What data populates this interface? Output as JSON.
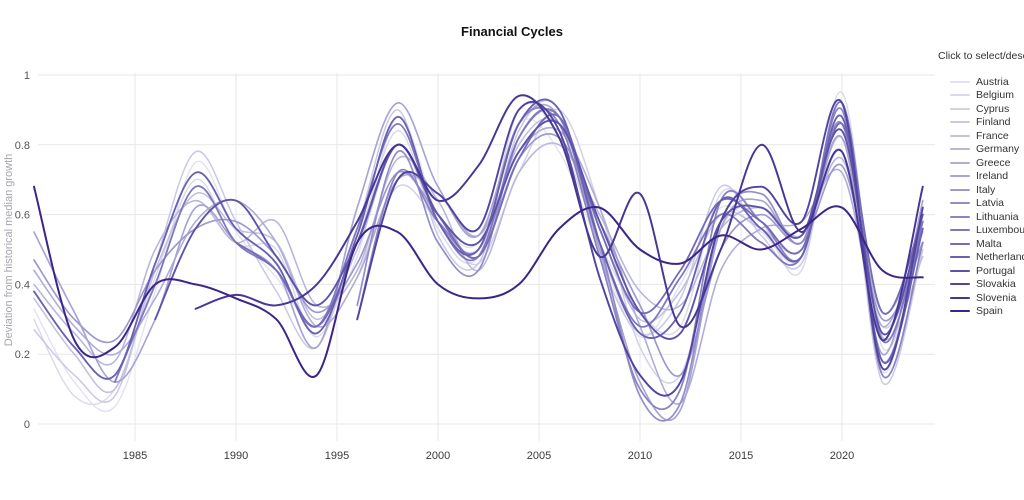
{
  "title": "Financial Cycles",
  "legend": {
    "title": "Click to select/deselect"
  },
  "axes": {
    "grid_color": "#e7e7ea",
    "x_tick_color": "#3a3a3a",
    "y_tick_color": "#555555"
  },
  "chart_data": {
    "type": "line",
    "title": "Financial Cycles",
    "xlabel": "",
    "ylabel": "Deviation from historical median growth",
    "xlim": [
      1980,
      2024.6
    ],
    "ylim": [
      0,
      1
    ],
    "x_ticks": [
      1985,
      1990,
      1995,
      2000,
      2005,
      2010,
      2015,
      2020
    ],
    "y_ticks": [
      0,
      0.2,
      0.4,
      0.6,
      0.8,
      1
    ],
    "y_tick_labels": [
      "0",
      "0.2",
      "0.4",
      "0.6",
      "0.8",
      "1"
    ],
    "grid": true,
    "legend_position": "right",
    "legend_note": "color ramp light-to-dark purple in list order",
    "series": [
      {
        "name": "Austria",
        "color": "#e2e1f0",
        "start_year": 1980,
        "step": 2,
        "values": [
          0.33,
          0.12,
          0.05,
          0.38,
          0.75,
          0.55,
          0.42,
          0.28,
          0.48,
          0.88,
          0.6,
          0.52,
          0.86,
          0.78,
          0.5,
          0.25,
          0.4,
          0.62,
          0.55,
          0.48,
          0.92,
          0.15,
          0.62
        ]
      },
      {
        "name": "Belgium",
        "color": "#dad9ec",
        "start_year": 1980,
        "step": 2,
        "values": [
          0.3,
          0.08,
          0.1,
          0.42,
          0.7,
          0.52,
          0.5,
          0.25,
          0.52,
          0.84,
          0.56,
          0.48,
          0.9,
          0.82,
          0.52,
          0.32,
          0.28,
          0.66,
          0.58,
          0.44,
          0.95,
          0.22,
          0.55
        ]
      },
      {
        "name": "Cyprus",
        "color": "#d2d0e8",
        "start_year": 1996,
        "step": 2,
        "values": [
          0.42,
          0.68,
          0.58,
          0.46,
          0.72,
          0.9,
          0.62,
          0.22,
          0.14,
          0.56,
          0.62,
          0.52,
          0.78,
          0.28,
          0.52
        ]
      },
      {
        "name": "Finland",
        "color": "#cac8e4",
        "start_year": 1980,
        "step": 2,
        "values": [
          0.27,
          0.14,
          0.08,
          0.46,
          0.78,
          0.58,
          0.38,
          0.22,
          0.56,
          0.9,
          0.54,
          0.46,
          0.84,
          0.9,
          0.48,
          0.26,
          0.36,
          0.68,
          0.54,
          0.46,
          0.86,
          0.12,
          0.5
        ]
      },
      {
        "name": "France",
        "color": "#c2bfe0",
        "start_year": 1980,
        "step": 2,
        "values": [
          0.36,
          0.2,
          0.1,
          0.44,
          0.66,
          0.56,
          0.52,
          0.3,
          0.5,
          0.8,
          0.58,
          0.5,
          0.8,
          0.86,
          0.56,
          0.3,
          0.38,
          0.6,
          0.56,
          0.5,
          0.82,
          0.25,
          0.48
        ]
      },
      {
        "name": "Germany",
        "color": "#b9b6dc",
        "start_year": 1980,
        "step": 2,
        "values": [
          0.4,
          0.26,
          0.18,
          0.5,
          0.64,
          0.52,
          0.58,
          0.34,
          0.44,
          0.76,
          0.64,
          0.44,
          0.72,
          0.8,
          0.6,
          0.38,
          0.34,
          0.56,
          0.62,
          0.54,
          0.76,
          0.32,
          0.55
        ]
      },
      {
        "name": "Greece",
        "color": "#b0add8",
        "start_year": 1980,
        "step": 2,
        "values": [
          0.44,
          0.28,
          0.2,
          0.36,
          0.58,
          0.64,
          0.52,
          0.28,
          0.42,
          0.7,
          0.66,
          0.54,
          0.78,
          0.84,
          0.62,
          0.28,
          0.06,
          0.44,
          0.56,
          0.58,
          0.72,
          0.28,
          0.58
        ]
      },
      {
        "name": "Ireland",
        "color": "#a7a3d3",
        "start_year": 1980,
        "step": 2,
        "values": [
          0.55,
          0.32,
          0.12,
          0.3,
          0.62,
          0.52,
          0.44,
          0.22,
          0.62,
          0.92,
          0.68,
          0.54,
          0.86,
          0.88,
          0.5,
          0.12,
          0.04,
          0.56,
          0.64,
          0.52,
          0.82,
          0.2,
          0.64
        ]
      },
      {
        "name": "Italy",
        "color": "#9d99ce",
        "start_year": 1980,
        "step": 2,
        "values": [
          0.47,
          0.3,
          0.24,
          0.44,
          0.56,
          0.58,
          0.48,
          0.32,
          0.46,
          0.72,
          0.6,
          0.48,
          0.76,
          0.82,
          0.58,
          0.34,
          0.14,
          0.5,
          0.6,
          0.52,
          0.74,
          0.3,
          0.52
        ]
      },
      {
        "name": "Latvia",
        "color": "#938ec9",
        "start_year": 1996,
        "step": 2,
        "values": [
          0.34,
          0.78,
          0.52,
          0.44,
          0.82,
          0.88,
          0.52,
          0.08,
          0.06,
          0.58,
          0.66,
          0.52,
          0.86,
          0.18,
          0.58
        ]
      },
      {
        "name": "Lithuania",
        "color": "#8a83c4",
        "start_year": 1996,
        "step": 2,
        "values": [
          0.3,
          0.72,
          0.58,
          0.5,
          0.86,
          0.86,
          0.48,
          0.1,
          0.1,
          0.64,
          0.58,
          0.48,
          0.9,
          0.14,
          0.52
        ]
      },
      {
        "name": "Luxembourg",
        "color": "#7f78be",
        "start_year": 1984,
        "step": 2,
        "values": [
          0.12,
          0.4,
          0.68,
          0.52,
          0.44,
          0.28,
          0.56,
          0.86,
          0.58,
          0.48,
          0.82,
          0.88,
          0.52,
          0.28,
          0.42,
          0.6,
          0.52,
          0.48,
          0.92,
          0.24,
          0.58
        ]
      },
      {
        "name": "Malta",
        "color": "#746cb8",
        "start_year": 1990,
        "step": 2,
        "values": [
          0.52,
          0.44,
          0.28,
          0.52,
          0.8,
          0.6,
          0.48,
          0.76,
          0.88,
          0.56,
          0.32,
          0.44,
          0.64,
          0.58,
          0.5,
          0.86,
          0.32,
          0.6
        ]
      },
      {
        "name": "Netherlands",
        "color": "#6960b1",
        "start_year": 1980,
        "step": 2,
        "values": [
          0.38,
          0.22,
          0.14,
          0.46,
          0.72,
          0.56,
          0.46,
          0.26,
          0.54,
          0.88,
          0.58,
          0.5,
          0.86,
          0.9,
          0.52,
          0.26,
          0.32,
          0.64,
          0.56,
          0.48,
          0.88,
          0.18,
          0.56
        ]
      },
      {
        "name": "Portugal",
        "color": "#5e53aa",
        "start_year": 1986,
        "step": 2,
        "values": [
          0.3,
          0.56,
          0.64,
          0.48,
          0.34,
          0.52,
          0.8,
          0.6,
          0.52,
          0.78,
          0.86,
          0.58,
          0.32,
          0.26,
          0.58,
          0.62,
          0.54,
          0.84,
          0.26,
          0.6
        ]
      },
      {
        "name": "Slovakia",
        "color": "#5244a0",
        "start_year": 1996,
        "step": 2,
        "values": [
          0.3,
          0.7,
          0.66,
          0.56,
          0.9,
          0.84,
          0.42,
          0.14,
          0.12,
          0.58,
          0.68,
          0.58,
          0.92,
          0.16,
          0.62
        ]
      },
      {
        "name": "Slovenia",
        "color": "#473695",
        "start_year": 1988,
        "step": 2,
        "values": [
          0.33,
          0.37,
          0.34,
          0.4,
          0.58,
          0.8,
          0.64,
          0.74,
          0.94,
          0.82,
          0.48,
          0.66,
          0.28,
          0.5,
          0.8,
          0.55,
          0.78,
          0.24,
          0.68
        ]
      },
      {
        "name": "Spain",
        "color": "#3d2588",
        "start_year": 1980,
        "step": 2,
        "values": [
          0.68,
          0.24,
          0.22,
          0.4,
          0.4,
          0.36,
          0.3,
          0.14,
          0.52,
          0.55,
          0.4,
          0.36,
          0.4,
          0.56,
          0.62,
          0.5,
          0.46,
          0.54,
          0.5,
          0.56,
          0.62,
          0.44,
          0.42
        ]
      }
    ]
  }
}
